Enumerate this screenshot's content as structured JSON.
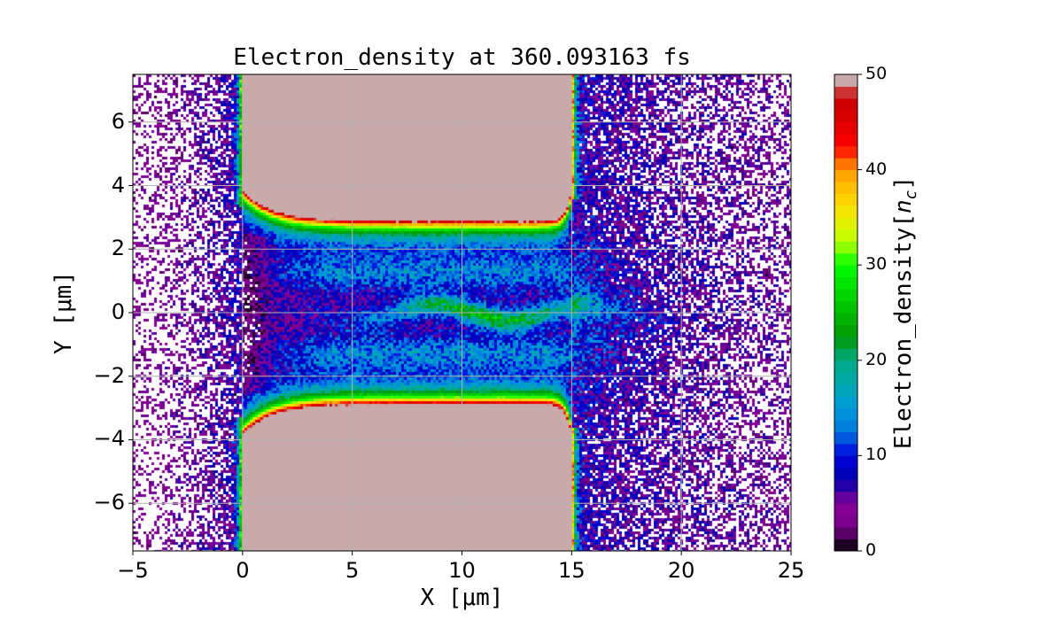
{
  "chart_data": {
    "type": "heatmap",
    "style": "filled contour",
    "title": "Electron_density at 360.093163 fs",
    "xlabel": "X [μm]",
    "ylabel": "Y [μm]",
    "xlim": [
      -5,
      25
    ],
    "ylim": [
      -7.5,
      7.5
    ],
    "xticks": [
      -5,
      0,
      5,
      10,
      15,
      20,
      25
    ],
    "xtick_labels": [
      "−5",
      "0",
      "5",
      "10",
      "15",
      "20",
      "25"
    ],
    "yticks": [
      -6,
      -4,
      -2,
      0,
      2,
      4,
      6
    ],
    "ytick_labels": [
      "−6",
      "−4",
      "−2",
      "0",
      "2",
      "4",
      "6"
    ],
    "grid": true,
    "colormap": "nipy_spectral",
    "colorbar": {
      "label_text": "Electron_density[",
      "label_sym": "n",
      "label_sub": "c",
      "label_end": "]",
      "range": [
        0,
        50
      ],
      "ticks": [
        0,
        10,
        20,
        30,
        40,
        50
      ],
      "tick_labels": [
        "0",
        "10",
        "20",
        "30",
        "40",
        "50"
      ]
    },
    "features": {
      "solid_target_density": 50,
      "target_x_range": [
        0,
        15
      ],
      "channel_half_width_um": 3,
      "filament_peak_density": 25
    }
  }
}
